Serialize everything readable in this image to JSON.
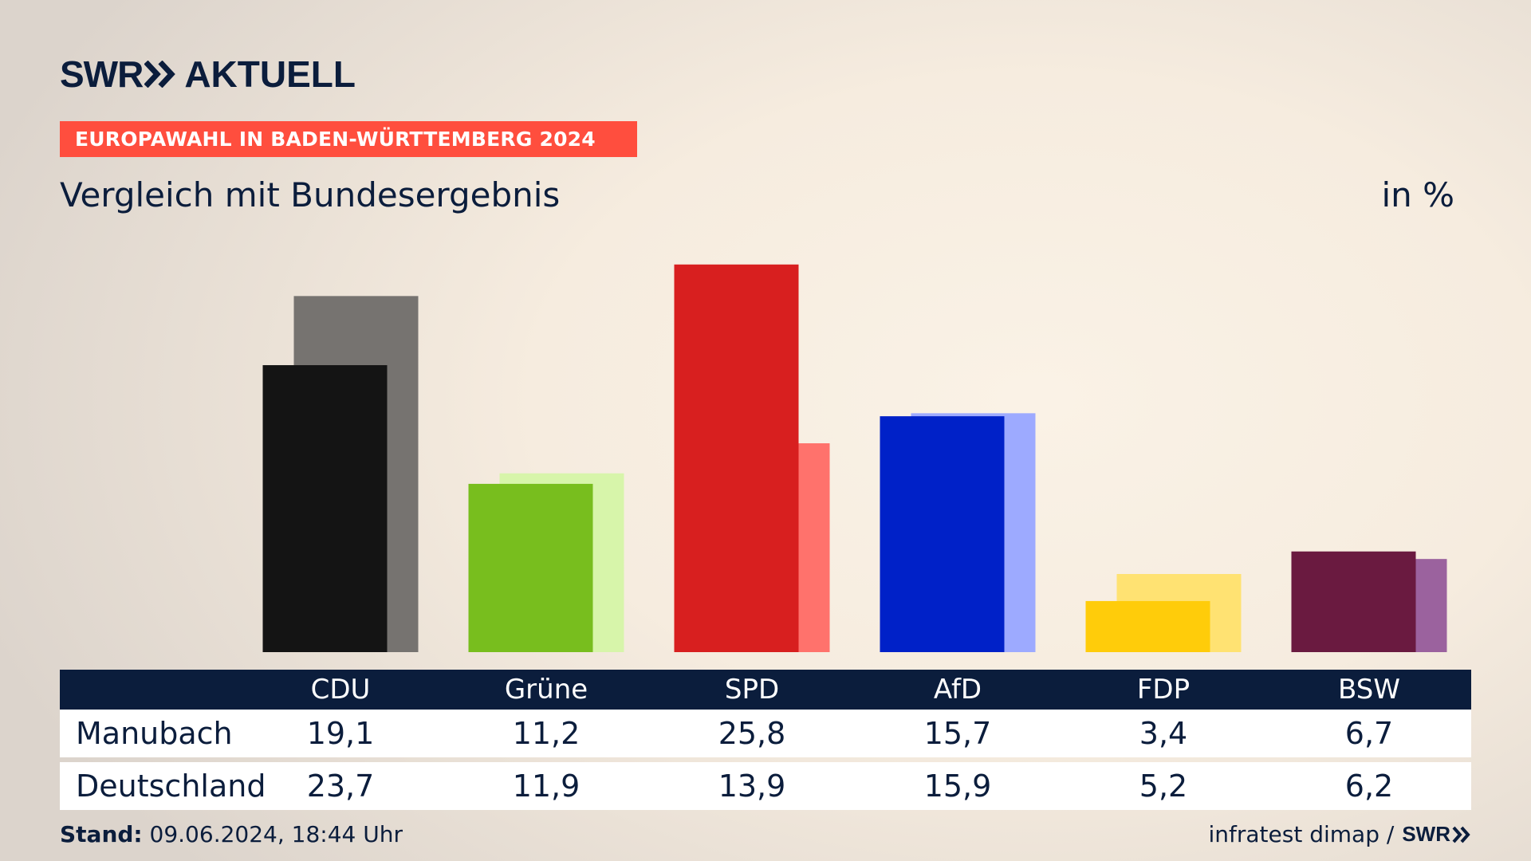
{
  "brand": {
    "swr": "SWR",
    "aktuell": "AKTUELL"
  },
  "banner": "EUROPAWAHL IN BADEN-WÜRTTEMBERG 2024",
  "subtitle": "Vergleich mit Bundesergebnis",
  "unit": "in %",
  "footer": {
    "stand_label": "Stand:",
    "stand_value": "09.06.2024, 18:44 Uhr",
    "source": "infratest dimap /",
    "source_brand": "SWR"
  },
  "colors": {
    "background": "#f6ecdf",
    "navy": "#0b1d3c",
    "banner": "#ff4e3e",
    "local": [
      "#141414",
      "#78be1e",
      "#d81f1f",
      "#0021c8",
      "#ffcc0a",
      "#6a1a40"
    ],
    "federal": [
      "#767370",
      "#d7f5aa",
      "#ff726c",
      "#9daaff",
      "#ffe272",
      "#9b629e"
    ]
  },
  "chart_data": {
    "type": "bar",
    "categories": [
      "CDU",
      "Grüne",
      "SPD",
      "AfD",
      "FDP",
      "BSW"
    ],
    "series": [
      {
        "name": "Manubach",
        "values": [
          19.1,
          11.2,
          25.8,
          15.7,
          3.4,
          6.7
        ]
      },
      {
        "name": "Deutschland",
        "values": [
          23.7,
          11.9,
          13.9,
          15.9,
          5.2,
          6.2
        ]
      }
    ],
    "value_labels": [
      [
        "19,1",
        "11,2",
        "25,8",
        "15,7",
        "3,4",
        "6,7"
      ],
      [
        "23,7",
        "11,9",
        "13,9",
        "15,9",
        "5,2",
        "6,2"
      ]
    ],
    "ylim": [
      0,
      26
    ],
    "grid": false
  }
}
